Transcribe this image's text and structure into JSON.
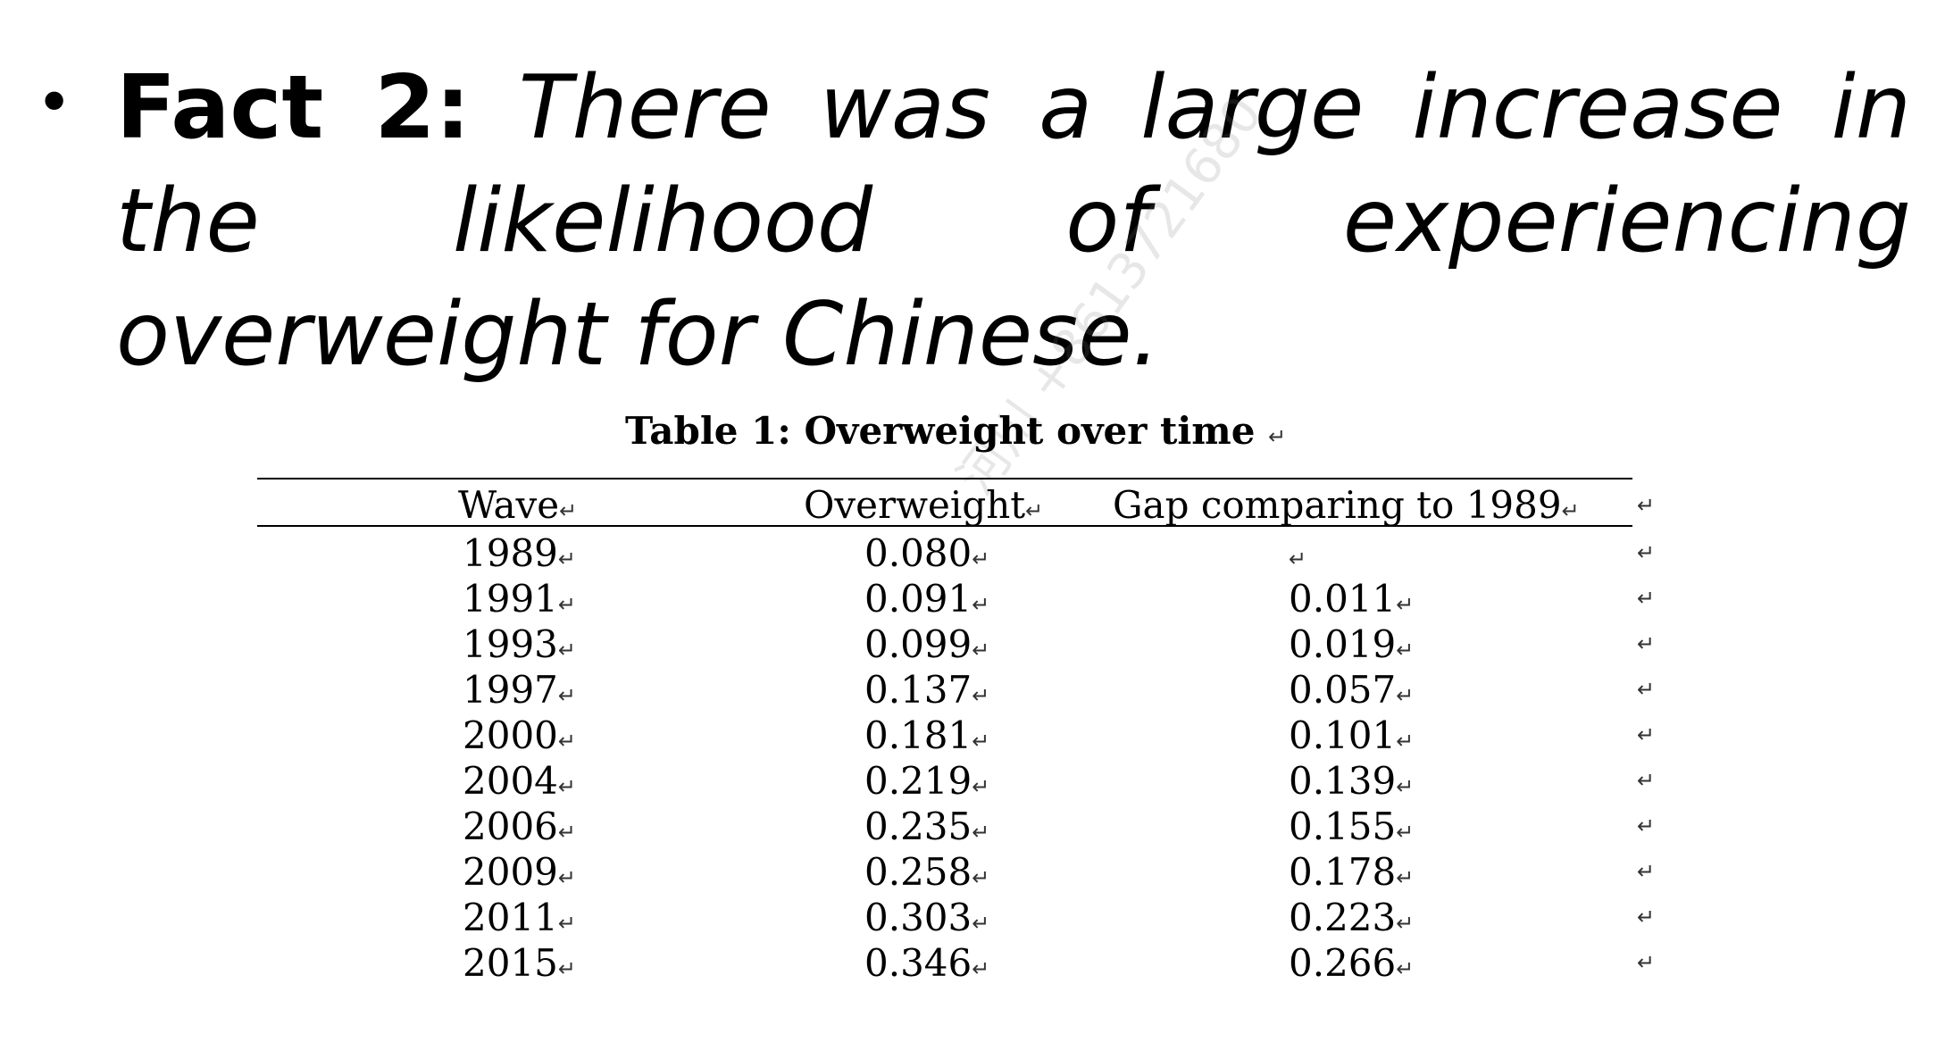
{
  "slide": {
    "bullet_symbol": "•",
    "fact_label": "Fact 2:",
    "fact_text": "There was a large increase in the likelihood of experiencing overweight for Chinese."
  },
  "watermark": "河川 +8613721680",
  "table": {
    "title": "Table 1: Overweight over time",
    "paragraph_mark": "↵",
    "columns": [
      "Wave",
      "Overweight",
      "Gap comparing to 1989"
    ],
    "rows": [
      {
        "wave": "1989",
        "overweight": "0.080",
        "gap": ""
      },
      {
        "wave": "1991",
        "overweight": "0.091",
        "gap": "0.011"
      },
      {
        "wave": "1993",
        "overweight": "0.099",
        "gap": "0.019"
      },
      {
        "wave": "1997",
        "overweight": "0.137",
        "gap": "0.057"
      },
      {
        "wave": "2000",
        "overweight": "0.181",
        "gap": "0.101"
      },
      {
        "wave": "2004",
        "overweight": "0.219",
        "gap": "0.139"
      },
      {
        "wave": "2006",
        "overweight": "0.235",
        "gap": "0.155"
      },
      {
        "wave": "2009",
        "overweight": "0.258",
        "gap": "0.178"
      },
      {
        "wave": "2011",
        "overweight": "0.303",
        "gap": "0.223"
      },
      {
        "wave": "2015",
        "overweight": "0.346",
        "gap": "0.266"
      }
    ]
  }
}
